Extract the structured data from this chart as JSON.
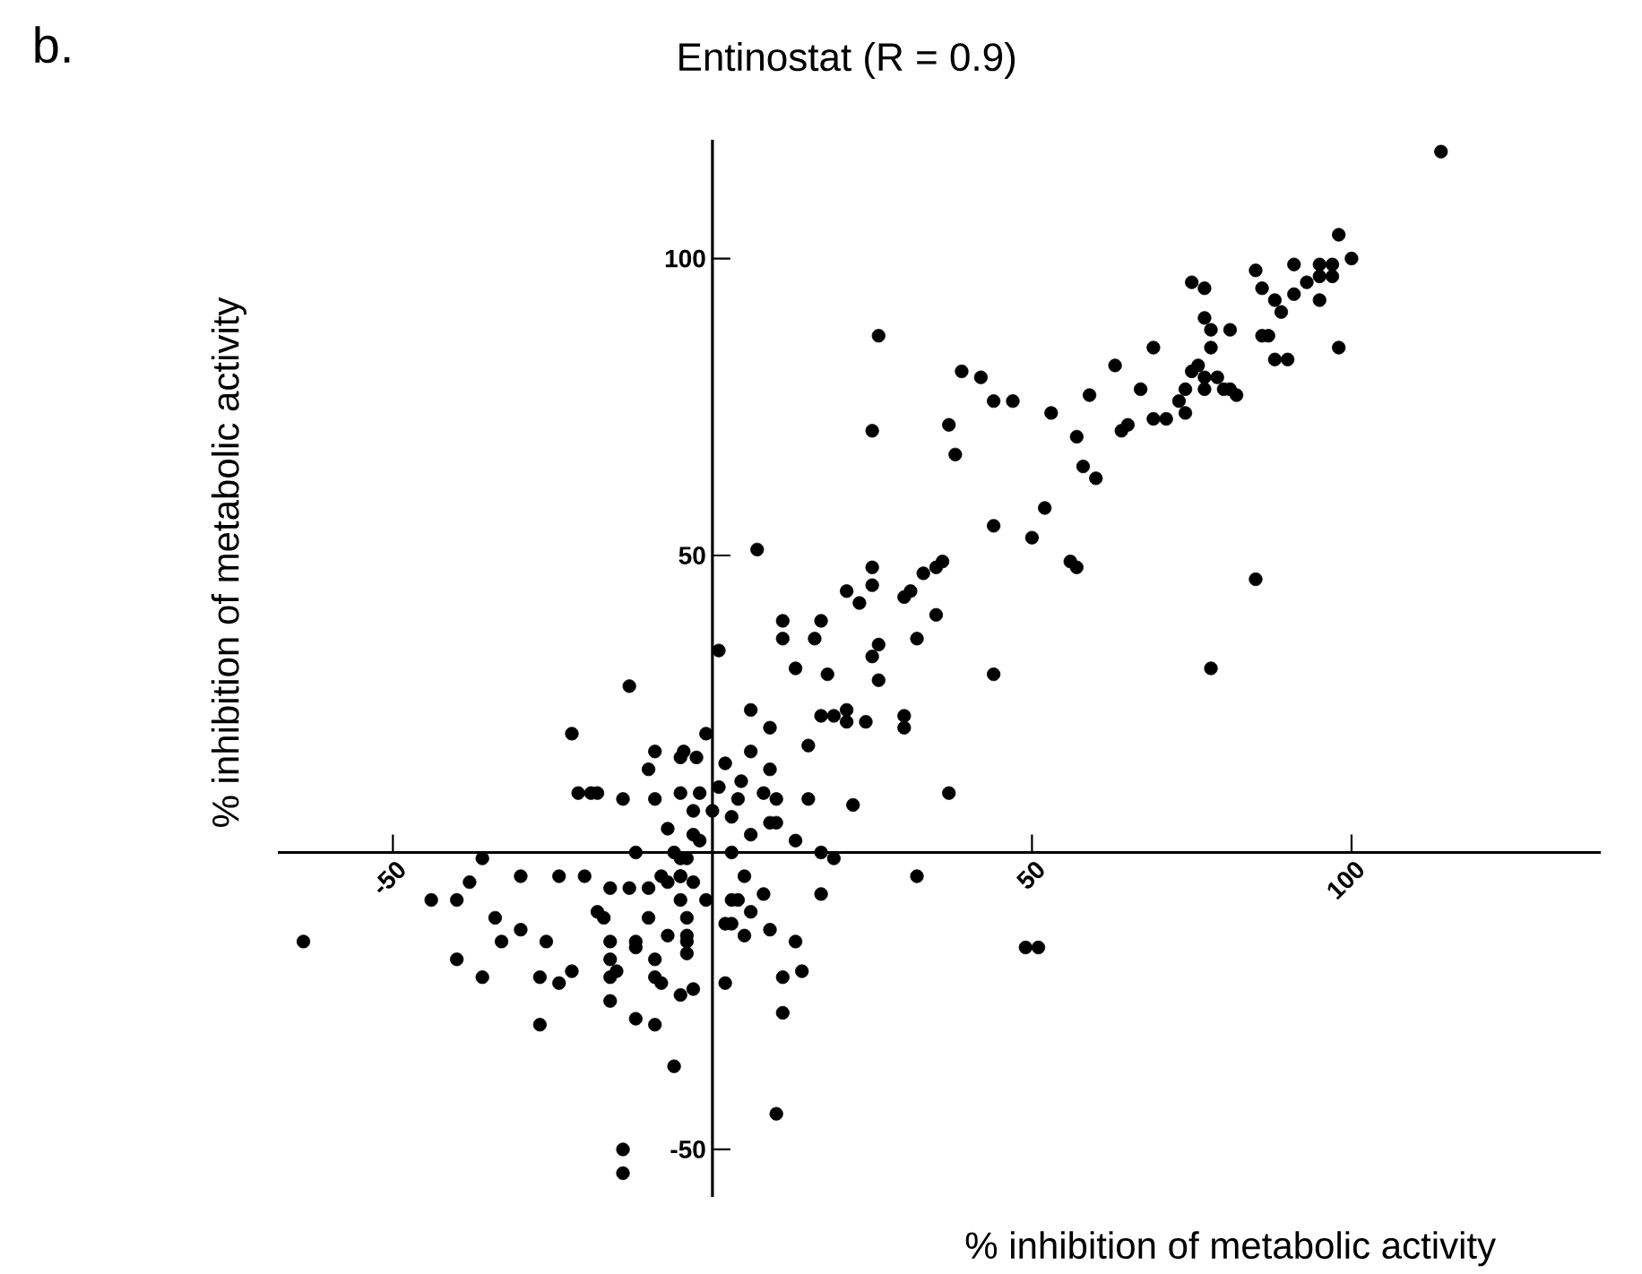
{
  "chart_data": {
    "type": "scatter",
    "title": "Entinostat (R = 0.9)",
    "xlabel": "% inhibition of metabolic activity",
    "ylabel": "% inhibition of metabolic activity",
    "annotations": [
      "b."
    ],
    "xlim": [
      -68,
      139
    ],
    "ylim": [
      -58,
      120
    ],
    "xticks": [
      -50,
      50,
      100
    ],
    "yticks": [
      -50,
      50,
      100
    ],
    "grid": false,
    "marker": "circle",
    "series": [
      {
        "color": "#000000",
        "x": [
          114,
          98,
          91,
          95,
          97,
          100,
          95,
          93,
          91,
          88,
          85,
          86,
          89,
          95,
          97,
          98,
          86,
          87,
          88,
          90,
          85,
          75,
          77,
          77,
          78,
          81,
          78,
          69,
          63,
          67,
          75,
          74,
          77,
          80,
          76,
          79,
          77,
          81,
          82,
          73,
          74,
          69,
          71,
          64,
          65,
          57,
          58,
          60,
          56,
          78,
          53,
          59,
          39,
          42,
          44,
          47,
          37,
          38,
          52,
          50,
          26,
          25,
          7,
          44,
          57,
          1,
          11,
          11,
          17,
          16,
          13,
          18,
          21,
          23,
          25,
          25,
          30,
          31,
          33,
          35,
          36,
          35,
          32,
          25,
          26,
          26,
          44,
          17,
          19,
          21,
          21,
          24,
          30,
          30,
          37,
          22,
          6,
          9,
          -1,
          6,
          2,
          9,
          15,
          4.5,
          8,
          10,
          15,
          4,
          1,
          0,
          -3,
          3,
          9,
          10,
          6,
          13,
          3,
          17,
          19,
          32,
          5,
          8,
          17,
          3,
          4,
          -1,
          6,
          3,
          2,
          5,
          9,
          13,
          14,
          11,
          2,
          49,
          51,
          -13,
          -22,
          -9,
          -4.5,
          -2.5,
          -5,
          -10,
          -21,
          -19,
          -18,
          -14,
          -9,
          -5,
          -2,
          -7,
          -3,
          -2,
          -12,
          -36,
          -6,
          -5,
          -4,
          -8,
          -7,
          -5,
          -5,
          -3,
          -5,
          -10,
          -13,
          -16,
          -20,
          -24,
          -30,
          -38,
          -40,
          -44,
          -18,
          -17,
          -10,
          -4,
          -7,
          -4,
          -4,
          -34,
          -30,
          -33,
          -26,
          -16,
          -12,
          -12,
          -4,
          -16,
          -15,
          -16,
          -9,
          -9,
          -8,
          -5,
          -3,
          -22,
          -24,
          -27,
          -36,
          -40,
          -16,
          -12,
          -9,
          -27,
          -6,
          10,
          -14,
          -14,
          -64,
          11
        ],
        "values": [
          118,
          104,
          99,
          99,
          99,
          100,
          97,
          96,
          94,
          93,
          98,
          95,
          91,
          93,
          97,
          85,
          87,
          87,
          83,
          83,
          46,
          96,
          95,
          90,
          88,
          88,
          85,
          85,
          82,
          78,
          81,
          78,
          78,
          78,
          82,
          80,
          80,
          78,
          77,
          76,
          74,
          73,
          73,
          71,
          72,
          70,
          65,
          63,
          49,
          31,
          74,
          77,
          81,
          80,
          76,
          76,
          72,
          67,
          58,
          53,
          87,
          71,
          51,
          55,
          48,
          34,
          39,
          36,
          39,
          36,
          31,
          30,
          44,
          42,
          45,
          48,
          43,
          44,
          47,
          48,
          49,
          40,
          36,
          33,
          35,
          29,
          30,
          23,
          23,
          24,
          22,
          22,
          23,
          21,
          10,
          8,
          24,
          21,
          20,
          17,
          15,
          14,
          18,
          12,
          10,
          9,
          9,
          9,
          11,
          7,
          7,
          6,
          5,
          5,
          3,
          2,
          0,
          0,
          -1,
          -4,
          -4,
          -7,
          -7,
          -8,
          -8,
          -8,
          -10,
          -12,
          -12,
          -14,
          -13,
          -15,
          -20,
          -21,
          -22,
          -16,
          -16,
          28,
          20,
          17,
          17,
          16,
          16,
          14,
          10,
          10,
          10,
          9,
          9,
          10,
          10,
          4,
          3,
          2,
          0,
          -1,
          0,
          -1,
          -1,
          -4,
          -5,
          -4,
          -4,
          -5,
          -8,
          -6,
          -6,
          -6,
          -4,
          -4,
          -4,
          -5,
          -8,
          -8,
          -10,
          -11,
          -11,
          -11,
          -14,
          -14,
          -15,
          -11,
          -13,
          -15,
          -15,
          -15,
          -15,
          -16,
          -17,
          -18,
          -20,
          -21,
          -18,
          -21,
          -22,
          -24,
          -23,
          -20,
          -22,
          -21,
          -21,
          -18,
          -25,
          -28,
          -29,
          -29,
          -36,
          -44,
          -50,
          -54,
          -15,
          -27
        ]
      }
    ]
  }
}
